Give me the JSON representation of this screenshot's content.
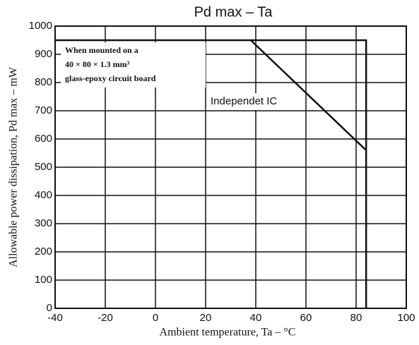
{
  "chart_data": {
    "type": "line",
    "title": "Pd max  –  Ta",
    "x_label": "Ambient temperature, Ta – °C",
    "y_label": "Allowable power dissipation, Pd max – mW",
    "annotations": [
      "When mounted on a",
      "40 × 80 × 1.3 mm³",
      "glass-epoxy circuit board",
      "Independet IC"
    ],
    "series": [
      {
        "name": "Independet IC",
        "color": "#111111",
        "x": [
          -40,
          38,
          84
        ],
        "values": [
          950,
          950,
          560
        ]
      },
      {
        "color": "#111111",
        "x": [
          38,
          84,
          84
        ],
        "values": [
          950,
          950,
          0
        ]
      }
    ],
    "xlim": [
      -40,
      100
    ],
    "ylim": [
      0,
      1000
    ],
    "xticks": [
      -40,
      -20,
      0,
      20,
      40,
      60,
      80,
      100
    ],
    "yticks": [
      0,
      100,
      200,
      300,
      400,
      500,
      600,
      700,
      800,
      900,
      1000
    ],
    "grid": true
  }
}
